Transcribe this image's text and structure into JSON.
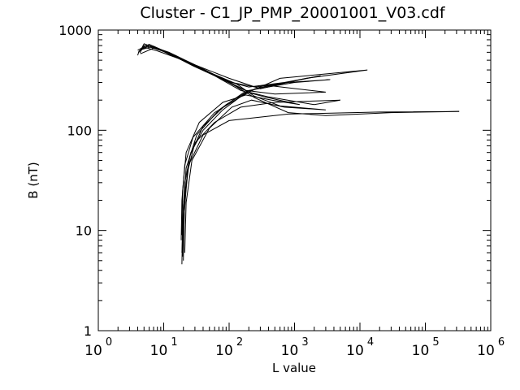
{
  "chart_data": {
    "type": "line",
    "title": "Cluster - C1_JP_PMP_20001001_V03.cdf",
    "xlabel": "L value",
    "ylabel": "B (nT)",
    "xscale": "log",
    "yscale": "log",
    "xlim": [
      1,
      1000000
    ],
    "ylim": [
      1,
      1000
    ],
    "xticks": [
      {
        "base": "10",
        "exp": "0"
      },
      {
        "base": "10",
        "exp": "1"
      },
      {
        "base": "10",
        "exp": "2"
      },
      {
        "base": "10",
        "exp": "3"
      },
      {
        "base": "10",
        "exp": "4"
      },
      {
        "base": "10",
        "exp": "5"
      },
      {
        "base": "10",
        "exp": "6"
      }
    ],
    "yticks": [
      "1",
      "10",
      "100",
      "1000"
    ],
    "grid": false,
    "line_color": "#000000",
    "series": [
      {
        "points": [
          [
            19,
            4.6
          ],
          [
            19.5,
            12
          ],
          [
            21,
            30
          ],
          [
            26,
            60
          ],
          [
            40,
            100
          ],
          [
            80,
            160
          ],
          [
            170,
            230
          ],
          [
            600,
            330
          ],
          [
            13000,
            400
          ],
          [
            1500,
            330
          ],
          [
            300,
            260
          ],
          [
            100,
            330
          ],
          [
            30,
            450
          ],
          [
            12,
            600
          ],
          [
            6,
            700
          ],
          [
            4.2,
            620
          ],
          [
            4,
            560
          ]
        ]
      },
      {
        "points": [
          [
            20,
            5
          ],
          [
            20.5,
            14
          ],
          [
            23,
            38
          ],
          [
            30,
            75
          ],
          [
            60,
            120
          ],
          [
            150,
            170
          ],
          [
            500,
            190
          ],
          [
            5000,
            200
          ],
          [
            2000,
            180
          ],
          [
            400,
            215
          ],
          [
            200,
            240
          ],
          [
            80,
            320
          ],
          [
            25,
            470
          ],
          [
            9,
            640
          ],
          [
            5.5,
            710
          ],
          [
            4.1,
            600
          ]
        ]
      },
      {
        "points": [
          [
            19,
            6
          ],
          [
            20,
            18
          ],
          [
            24,
            45
          ],
          [
            40,
            90
          ],
          [
            100,
            125
          ],
          [
            800,
            145
          ],
          [
            20000,
            152
          ],
          [
            330000,
            154
          ],
          [
            30000,
            150
          ],
          [
            3000,
            140
          ],
          [
            800,
            150
          ],
          [
            250,
            210
          ],
          [
            120,
            280
          ],
          [
            35,
            430
          ],
          [
            12,
            590
          ],
          [
            6,
            720
          ],
          [
            4,
            630
          ]
        ]
      },
      {
        "points": [
          [
            18.5,
            8
          ],
          [
            19,
            20
          ],
          [
            21,
            45
          ],
          [
            28,
            85
          ],
          [
            60,
            150
          ],
          [
            140,
            210
          ],
          [
            250,
            260
          ],
          [
            2500,
            350
          ],
          [
            700,
            300
          ],
          [
            200,
            270
          ],
          [
            90,
            310
          ],
          [
            28,
            440
          ],
          [
            10,
            620
          ],
          [
            5,
            700
          ],
          [
            4.3,
            590
          ]
        ]
      },
      {
        "points": [
          [
            19.5,
            5.5
          ],
          [
            20,
            16
          ],
          [
            22,
            42
          ],
          [
            32,
            90
          ],
          [
            70,
            160
          ],
          [
            170,
            240
          ],
          [
            400,
            280
          ],
          [
            3000,
            240
          ],
          [
            500,
            230
          ],
          [
            180,
            250
          ],
          [
            70,
            340
          ],
          [
            22,
            480
          ],
          [
            8,
            650
          ],
          [
            5,
            730
          ],
          [
            4.5,
            640
          ]
        ]
      },
      {
        "points": [
          [
            20,
            7
          ],
          [
            21,
            20
          ],
          [
            25,
            55
          ],
          [
            40,
            110
          ],
          [
            90,
            180
          ],
          [
            200,
            250
          ],
          [
            1000,
            300
          ],
          [
            3500,
            320
          ],
          [
            800,
            300
          ],
          [
            250,
            270
          ],
          [
            110,
            300
          ],
          [
            40,
            400
          ],
          [
            15,
            560
          ],
          [
            7,
            660
          ],
          [
            4.4,
            580
          ]
        ]
      },
      {
        "points": [
          [
            19,
            9
          ],
          [
            19.5,
            25
          ],
          [
            22,
            60
          ],
          [
            35,
            120
          ],
          [
            80,
            190
          ],
          [
            180,
            225
          ],
          [
            450,
            200
          ],
          [
            1200,
            180
          ],
          [
            350,
            215
          ],
          [
            150,
            250
          ],
          [
            60,
            350
          ],
          [
            20,
            500
          ],
          [
            8,
            620
          ],
          [
            4.8,
            680
          ],
          [
            4.2,
            610
          ]
        ]
      },
      {
        "points": [
          [
            21,
            6
          ],
          [
            22,
            19
          ],
          [
            27,
            50
          ],
          [
            50,
            105
          ],
          [
            110,
            170
          ],
          [
            220,
            200
          ],
          [
            700,
            170
          ],
          [
            3000,
            160
          ],
          [
            600,
            175
          ],
          [
            240,
            220
          ],
          [
            130,
            290
          ],
          [
            45,
            390
          ],
          [
            16,
            540
          ],
          [
            7,
            690
          ],
          [
            4.6,
            640
          ]
        ]
      }
    ]
  }
}
